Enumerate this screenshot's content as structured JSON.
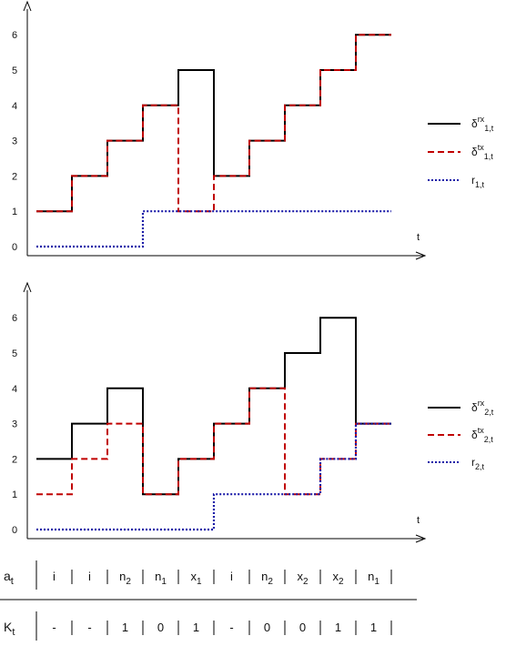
{
  "chart_data": [
    {
      "type": "line",
      "step": true,
      "x_label": "t",
      "y_ticks": [
        "0",
        "1",
        "2",
        "3",
        "4",
        "5",
        "6"
      ],
      "ylim": [
        0,
        6
      ],
      "x_range": [
        0,
        10
      ],
      "grid": false,
      "legend_position": "right",
      "series": [
        {
          "name_base": "δ",
          "name_sup": "rx",
          "name_sub": "1,t",
          "color": "#000000",
          "style": "solid",
          "values": [
            1,
            2,
            3,
            4,
            5,
            2,
            3,
            4,
            5,
            6
          ]
        },
        {
          "name_base": "δ",
          "name_sup": "tx",
          "name_sub": "1,t",
          "color": "#c00000",
          "style": "dashed",
          "values": [
            1,
            2,
            3,
            4,
            1,
            2,
            3,
            4,
            5,
            6
          ]
        },
        {
          "name_base": "r",
          "name_sup": "",
          "name_sub": "1,t",
          "color": "#1a1aa8",
          "style": "dotted",
          "values": [
            0,
            0,
            0,
            1,
            1,
            1,
            1,
            1,
            1,
            1
          ]
        }
      ]
    },
    {
      "type": "line",
      "step": true,
      "x_label": "t",
      "y_ticks": [
        "0",
        "1",
        "2",
        "3",
        "4",
        "5",
        "6"
      ],
      "ylim": [
        0,
        6
      ],
      "x_range": [
        0,
        10
      ],
      "grid": false,
      "legend_position": "right",
      "series": [
        {
          "name_base": "δ",
          "name_sup": "rx",
          "name_sub": "2,t",
          "color": "#000000",
          "style": "solid",
          "values": [
            2,
            3,
            4,
            1,
            2,
            3,
            4,
            5,
            6,
            3
          ]
        },
        {
          "name_base": "δ",
          "name_sup": "tx",
          "name_sub": "2,t",
          "color": "#c00000",
          "style": "dashed",
          "values": [
            1,
            2,
            3,
            1,
            2,
            3,
            4,
            1,
            2,
            3
          ]
        },
        {
          "name_base": "r",
          "name_sup": "",
          "name_sub": "2,t",
          "color": "#1a1aa8",
          "style": "dotted",
          "values": [
            0,
            0,
            0,
            0,
            0,
            1,
            1,
            1,
            2,
            3
          ]
        }
      ]
    }
  ],
  "table": {
    "rows": [
      {
        "label_base": "a",
        "label_sub": "t",
        "cells": [
          {
            "base": "i",
            "sub": ""
          },
          {
            "base": "i",
            "sub": ""
          },
          {
            "base": "n",
            "sub": "2"
          },
          {
            "base": "n",
            "sub": "1"
          },
          {
            "base": "x",
            "sub": "1"
          },
          {
            "base": "i",
            "sub": ""
          },
          {
            "base": "n",
            "sub": "2"
          },
          {
            "base": "x",
            "sub": "2"
          },
          {
            "base": "x",
            "sub": "2"
          },
          {
            "base": "n",
            "sub": "1"
          }
        ]
      },
      {
        "label_base": "K",
        "label_sub": "t",
        "cells": [
          {
            "base": "-",
            "sub": ""
          },
          {
            "base": "-",
            "sub": ""
          },
          {
            "base": "1",
            "sub": ""
          },
          {
            "base": "0",
            "sub": ""
          },
          {
            "base": "1",
            "sub": ""
          },
          {
            "base": "-",
            "sub": ""
          },
          {
            "base": "0",
            "sub": ""
          },
          {
            "base": "0",
            "sub": ""
          },
          {
            "base": "1",
            "sub": ""
          },
          {
            "base": "1",
            "sub": ""
          }
        ]
      }
    ]
  }
}
